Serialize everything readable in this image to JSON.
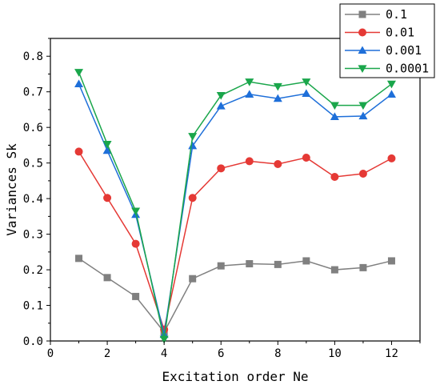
{
  "chart_data": {
    "type": "line",
    "xlabel": "Excitation order Ne",
    "ylabel": "Variances Sk",
    "xlim": [
      0,
      13
    ],
    "ylim": [
      0,
      0.85
    ],
    "x_ticks": [
      "0",
      "2",
      "4",
      "6",
      "8",
      "10",
      "12"
    ],
    "y_ticks": [
      "0.0",
      "0.1",
      "0.2",
      "0.3",
      "0.4",
      "0.5",
      "0.6",
      "0.7",
      "0.8"
    ],
    "x_tick_values": [
      0,
      2,
      4,
      6,
      8,
      10,
      12
    ],
    "y_tick_values": [
      0,
      0.1,
      0.2,
      0.3,
      0.4,
      0.5,
      0.6,
      0.7,
      0.8
    ],
    "legend_position": "top-right, outside plot",
    "grid": false,
    "x": [
      1,
      2,
      3,
      4,
      5,
      6,
      7,
      8,
      9,
      10,
      11,
      12
    ],
    "series": [
      {
        "name": "0.1",
        "color": "#808080",
        "marker": "square",
        "values": [
          0.232,
          0.178,
          0.125,
          0.025,
          0.175,
          0.211,
          0.217,
          0.215,
          0.225,
          0.2,
          0.206,
          0.225
        ]
      },
      {
        "name": "0.01",
        "color": "#e53935",
        "marker": "circle",
        "values": [
          0.532,
          0.402,
          0.273,
          0.032,
          0.402,
          0.485,
          0.505,
          0.497,
          0.515,
          0.461,
          0.47,
          0.513
        ]
      },
      {
        "name": "0.001",
        "color": "#1e6fd9",
        "marker": "triangle-up",
        "values": [
          0.722,
          0.535,
          0.355,
          0.018,
          0.548,
          0.66,
          0.693,
          0.681,
          0.695,
          0.63,
          0.632,
          0.693
        ]
      },
      {
        "name": "0.0001",
        "color": "#1aa64b",
        "marker": "triangle-down",
        "values": [
          0.755,
          0.553,
          0.365,
          0.005,
          0.575,
          0.69,
          0.728,
          0.715,
          0.728,
          0.662,
          0.662,
          0.722
        ]
      }
    ]
  }
}
